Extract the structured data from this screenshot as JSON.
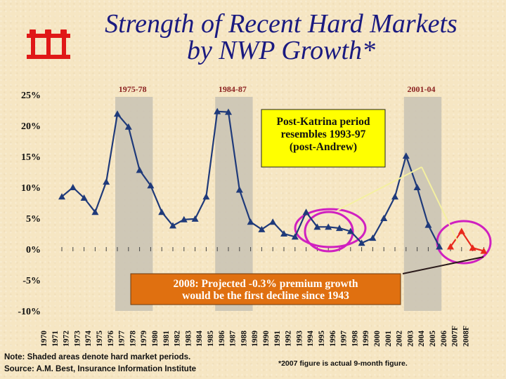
{
  "header": {
    "title_line1": "Strength of Recent Hard Markets",
    "title_line2": "by NWP Growth*"
  },
  "colors": {
    "title": "#1a1a80",
    "series": "#1f3a7a",
    "forecast": "#e8281c",
    "shading": "#c8c2b4",
    "callout_bg": "#ffff00",
    "highlight_circle": "#d020c0",
    "logo": "#e01818"
  },
  "chart_data": {
    "type": "line",
    "x": [
      "1970",
      "1971",
      "1972",
      "1973",
      "1974",
      "1975",
      "1976",
      "1977",
      "1978",
      "1979",
      "1980",
      "1981",
      "1982",
      "1983",
      "1984",
      "1985",
      "1986",
      "1987",
      "1988",
      "1989",
      "1990",
      "1991",
      "1992",
      "1993",
      "1994",
      "1995",
      "1996",
      "1997",
      "1998",
      "1999",
      "2000",
      "2001",
      "2002",
      "2003",
      "2004",
      "2005",
      "2006",
      "2007F",
      "2008F"
    ],
    "series": [
      {
        "name": "",
        "values": [
          8.5,
          10.0,
          8.3,
          6.0,
          10.9,
          21.9,
          19.8,
          12.8,
          10.3,
          6.0,
          3.8,
          4.8,
          4.9,
          8.5,
          22.3,
          22.2,
          9.6,
          4.4,
          3.2,
          4.4,
          2.5,
          2.0,
          6.0,
          3.6,
          3.6,
          3.4,
          2.9,
          1.0,
          1.8,
          5.0,
          8.5,
          15.1,
          10.0,
          3.9,
          0.4,
          null,
          null,
          null,
          null
        ]
      },
      {
        "name": "",
        "values": [
          null,
          null,
          null,
          null,
          null,
          null,
          null,
          null,
          null,
          null,
          null,
          null,
          null,
          null,
          null,
          null,
          null,
          null,
          null,
          null,
          null,
          null,
          null,
          null,
          null,
          null,
          null,
          null,
          null,
          null,
          null,
          null,
          null,
          null,
          null,
          0.4,
          2.9,
          0.2,
          -0.3
        ]
      }
    ],
    "ylim": [
      -10,
      25
    ],
    "yticks": [
      -10,
      -5,
      0,
      5,
      10,
      15,
      20,
      25
    ],
    "ytick_labels": [
      "-10%",
      "-5%",
      "0%",
      "5%",
      "10%",
      "15%",
      "20%",
      "25%"
    ],
    "shaded_periods": [
      {
        "label": "1975-78",
        "start": "1975",
        "end": "1978"
      },
      {
        "label": "1984-87",
        "start": "1984",
        "end": "1987"
      },
      {
        "label": "2001-04",
        "start": "2001",
        "end": "2004"
      }
    ],
    "annotations": [
      "Post-Katrina period resembles 1993-97 (post-Andrew)",
      "2008: Projected -0.3% premium growth would be the first decline since 1943"
    ]
  },
  "callouts": {
    "katrina_lines": [
      "Post-Katrina period",
      "resembles 1993-97",
      "(post-Andrew)"
    ],
    "projection_lines": [
      "2008: Projected -0.3% premium growth",
      "would be the first decline since 1943"
    ]
  },
  "footer": {
    "note": "Note: Shaded areas denote hard market periods.",
    "source": "Source:  A.M. Best, Insurance Information Institute",
    "footnote": "*2007 figure is actual 9-month figure."
  }
}
